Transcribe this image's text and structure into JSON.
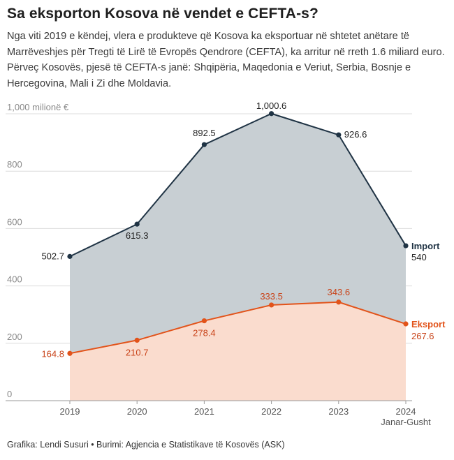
{
  "title": "Sa eksporton Kosova në vendet e CEFTA-s?",
  "subtitle": "Nga viti 2019 e këndej, vlera e produkteve që Kosova ka eksportuar në shtetet anëtare të Marrëveshjes për Tregti të Lirë të Evropës Qendrore (CEFTA), ka arritur në rreth 1.6 miliard euro. Përveç Kosovës, pjesë të CEFTA-s janë: Shqipëria, Maqedonia e Veriut, Serbia, Bosnje e Hercegovina, Mali i Zi dhe Moldavia.",
  "footer": "Grafika: Lendi Susuri • Burimi: Agjencia e Statistikave të Kosovës (ASK)",
  "chart_data": {
    "type": "area",
    "categories": [
      "2019",
      "2020",
      "2021",
      "2022",
      "2023",
      "2024"
    ],
    "last_category_note": "Janar-Gusht",
    "y_unit_label": "1,000 milionë €",
    "y_ticks": [
      "0",
      "200",
      "400",
      "600",
      "800"
    ],
    "ylim": [
      0,
      1000
    ],
    "grid": true,
    "series": [
      {
        "name": "Import",
        "values": [
          502.7,
          615.3,
          892.5,
          1000.6,
          926.6,
          540
        ],
        "labels": [
          "502.7",
          "615.3",
          "892.5",
          "1,000.6",
          "926.6",
          "540"
        ],
        "line_color": "#1f3344",
        "fill_color": "#c8cfd3"
      },
      {
        "name": "Eksport",
        "values": [
          164.8,
          210.7,
          278.4,
          333.5,
          343.6,
          267.6
        ],
        "labels": [
          "164.8",
          "210.7",
          "278.4",
          "333.5",
          "343.6",
          "267.6"
        ],
        "line_color": "#e2531a",
        "fill_color": "#fadcce"
      }
    ]
  }
}
